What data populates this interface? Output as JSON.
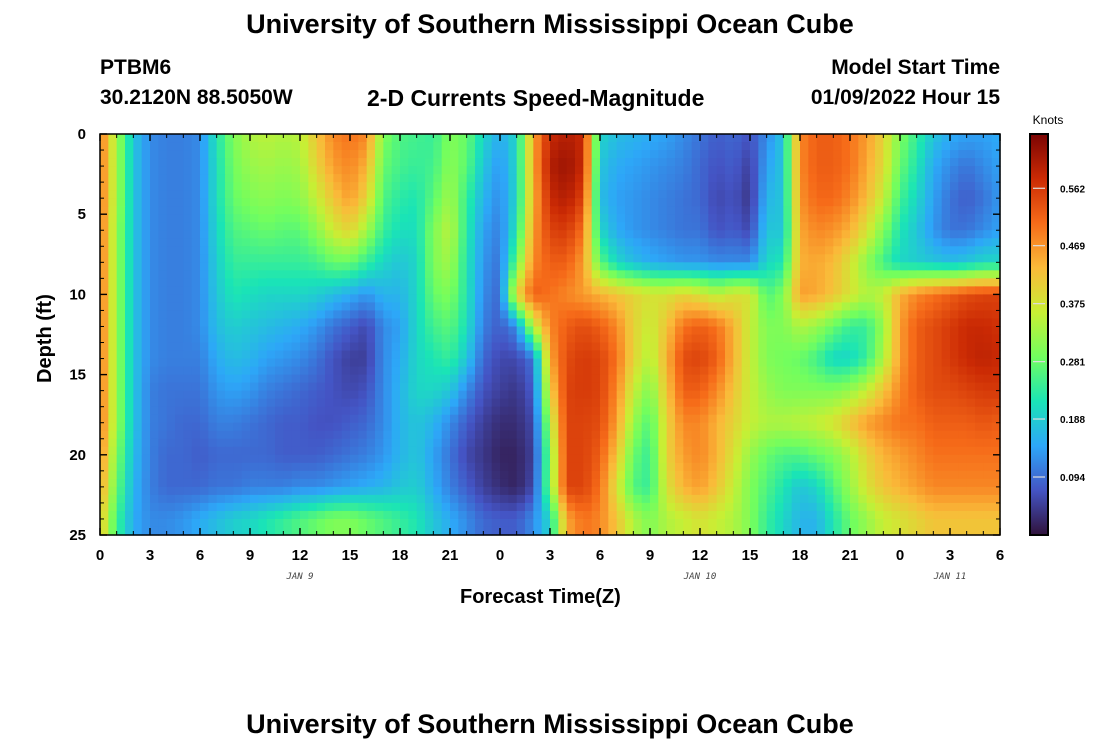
{
  "page": {
    "title_top": "University of Southern Mississippi Ocean Cube",
    "title_bottom": "University of Southern Mississippi Ocean Cube",
    "station": "PTBM6",
    "coords": "30.2120N  88.5050W",
    "subtitle": "2-D Currents Speed-Magnitude",
    "model_label": "Model Start Time",
    "model_time": "01/09/2022 Hour 15"
  },
  "chart_data": {
    "type": "heatmap",
    "title": "2-D Currents Speed-Magnitude",
    "xlabel": "Forecast Time(Z)",
    "ylabel": "Depth (ft)",
    "x_hours": [
      0,
      54
    ],
    "x_tick_labels": [
      "0",
      "3",
      "6",
      "9",
      "12",
      "15",
      "18",
      "21",
      "0",
      "3",
      "6",
      "9",
      "12",
      "15",
      "18",
      "21",
      "0",
      "3",
      "6"
    ],
    "date_labels": [
      {
        "text": "JAN 9",
        "hour": 12
      },
      {
        "text": "JAN 10",
        "hour": 36
      },
      {
        "text": "JAN 11",
        "hour": 51
      }
    ],
    "ylim": [
      0,
      25
    ],
    "y_ticks": [
      0,
      5,
      10,
      15,
      20,
      25
    ],
    "colorbar": {
      "label": "Knots",
      "range": [
        0,
        0.65
      ],
      "ticks": [
        0.094,
        0.188,
        0.281,
        0.375,
        0.469,
        0.562
      ],
      "colors": [
        "#30123b",
        "#4454c4",
        "#2da7f8",
        "#1ae4b6",
        "#72fe5e",
        "#c8ef34",
        "#faba39",
        "#f66b19",
        "#cb2a04",
        "#7a0403"
      ]
    },
    "depths": [
      0,
      2,
      4,
      6,
      8,
      10,
      12,
      14,
      16,
      18,
      20,
      22,
      24
    ],
    "hours": [
      0,
      1,
      2,
      3,
      4,
      5,
      6,
      7,
      8,
      9,
      10,
      11,
      12,
      13,
      14,
      15,
      16,
      17,
      18,
      19,
      20,
      21,
      22,
      23,
      24,
      25,
      26,
      27,
      28,
      29,
      30,
      31,
      32,
      33,
      34,
      35,
      36,
      37,
      38,
      39,
      40,
      41,
      42,
      43,
      44,
      45,
      46,
      47,
      48,
      49,
      50,
      51,
      52,
      53,
      54
    ],
    "values": [
      [
        0.5,
        0.33,
        0.18,
        0.12,
        0.11,
        0.11,
        0.12,
        0.22,
        0.3,
        0.34,
        0.35,
        0.34,
        0.35,
        0.42,
        0.48,
        0.5,
        0.48,
        0.3,
        0.26,
        0.25,
        0.24,
        0.3,
        0.28,
        0.2,
        0.15,
        0.2,
        0.45,
        0.58,
        0.6,
        0.58,
        0.2,
        0.17,
        0.16,
        0.15,
        0.14,
        0.12,
        0.1,
        0.08,
        0.09,
        0.07,
        0.12,
        0.18,
        0.48,
        0.52,
        0.52,
        0.5,
        0.46,
        0.4,
        0.3,
        0.24,
        0.18,
        0.15,
        0.14,
        0.14,
        0.15
      ],
      [
        0.5,
        0.33,
        0.18,
        0.12,
        0.11,
        0.11,
        0.12,
        0.21,
        0.29,
        0.32,
        0.33,
        0.32,
        0.33,
        0.4,
        0.46,
        0.48,
        0.44,
        0.28,
        0.25,
        0.24,
        0.25,
        0.31,
        0.27,
        0.18,
        0.13,
        0.2,
        0.45,
        0.6,
        0.62,
        0.58,
        0.18,
        0.15,
        0.14,
        0.13,
        0.12,
        0.11,
        0.09,
        0.07,
        0.08,
        0.05,
        0.14,
        0.18,
        0.48,
        0.52,
        0.52,
        0.5,
        0.45,
        0.39,
        0.28,
        0.22,
        0.15,
        0.12,
        0.1,
        0.12,
        0.14
      ],
      [
        0.5,
        0.33,
        0.18,
        0.12,
        0.11,
        0.11,
        0.12,
        0.21,
        0.28,
        0.3,
        0.31,
        0.3,
        0.31,
        0.36,
        0.42,
        0.46,
        0.4,
        0.26,
        0.23,
        0.22,
        0.27,
        0.33,
        0.24,
        0.16,
        0.12,
        0.2,
        0.44,
        0.58,
        0.6,
        0.55,
        0.17,
        0.14,
        0.13,
        0.12,
        0.11,
        0.1,
        0.09,
        0.06,
        0.07,
        0.04,
        0.16,
        0.18,
        0.47,
        0.51,
        0.51,
        0.48,
        0.43,
        0.36,
        0.25,
        0.2,
        0.14,
        0.1,
        0.08,
        0.1,
        0.13
      ],
      [
        0.5,
        0.32,
        0.18,
        0.12,
        0.11,
        0.11,
        0.12,
        0.2,
        0.26,
        0.27,
        0.28,
        0.27,
        0.27,
        0.31,
        0.37,
        0.4,
        0.33,
        0.24,
        0.21,
        0.21,
        0.3,
        0.35,
        0.23,
        0.14,
        0.11,
        0.22,
        0.46,
        0.55,
        0.56,
        0.5,
        0.2,
        0.15,
        0.13,
        0.12,
        0.11,
        0.1,
        0.1,
        0.07,
        0.08,
        0.06,
        0.18,
        0.18,
        0.45,
        0.48,
        0.47,
        0.44,
        0.38,
        0.3,
        0.22,
        0.18,
        0.13,
        0.1,
        0.1,
        0.12,
        0.14
      ],
      [
        0.5,
        0.32,
        0.18,
        0.12,
        0.11,
        0.11,
        0.12,
        0.19,
        0.24,
        0.24,
        0.24,
        0.24,
        0.24,
        0.25,
        0.28,
        0.28,
        0.24,
        0.2,
        0.18,
        0.2,
        0.3,
        0.33,
        0.22,
        0.13,
        0.1,
        0.28,
        0.48,
        0.52,
        0.52,
        0.46,
        0.27,
        0.2,
        0.17,
        0.15,
        0.14,
        0.13,
        0.13,
        0.12,
        0.12,
        0.12,
        0.2,
        0.22,
        0.44,
        0.45,
        0.43,
        0.38,
        0.31,
        0.25,
        0.2,
        0.19,
        0.18,
        0.17,
        0.18,
        0.2,
        0.2
      ],
      [
        0.5,
        0.32,
        0.18,
        0.12,
        0.11,
        0.11,
        0.12,
        0.18,
        0.22,
        0.21,
        0.2,
        0.2,
        0.2,
        0.19,
        0.17,
        0.15,
        0.13,
        0.16,
        0.16,
        0.2,
        0.28,
        0.3,
        0.22,
        0.12,
        0.09,
        0.4,
        0.52,
        0.5,
        0.48,
        0.46,
        0.44,
        0.42,
        0.4,
        0.38,
        0.38,
        0.4,
        0.38,
        0.35,
        0.38,
        0.38,
        0.26,
        0.3,
        0.46,
        0.45,
        0.42,
        0.38,
        0.34,
        0.36,
        0.44,
        0.48,
        0.5,
        0.52,
        0.54,
        0.55,
        0.55
      ],
      [
        0.5,
        0.32,
        0.18,
        0.12,
        0.11,
        0.11,
        0.12,
        0.17,
        0.19,
        0.18,
        0.17,
        0.16,
        0.15,
        0.13,
        0.1,
        0.08,
        0.06,
        0.12,
        0.14,
        0.2,
        0.25,
        0.27,
        0.21,
        0.11,
        0.08,
        0.12,
        0.35,
        0.48,
        0.52,
        0.54,
        0.52,
        0.48,
        0.4,
        0.36,
        0.42,
        0.5,
        0.52,
        0.5,
        0.44,
        0.36,
        0.3,
        0.3,
        0.34,
        0.32,
        0.28,
        0.24,
        0.24,
        0.32,
        0.46,
        0.52,
        0.54,
        0.56,
        0.58,
        0.58,
        0.57
      ],
      [
        0.5,
        0.32,
        0.18,
        0.12,
        0.11,
        0.11,
        0.11,
        0.15,
        0.17,
        0.16,
        0.14,
        0.13,
        0.12,
        0.1,
        0.07,
        0.05,
        0.05,
        0.12,
        0.15,
        0.2,
        0.22,
        0.24,
        0.18,
        0.09,
        0.06,
        0.06,
        0.1,
        0.45,
        0.54,
        0.56,
        0.55,
        0.5,
        0.4,
        0.34,
        0.44,
        0.54,
        0.55,
        0.52,
        0.44,
        0.36,
        0.3,
        0.29,
        0.28,
        0.25,
        0.2,
        0.2,
        0.24,
        0.34,
        0.46,
        0.52,
        0.54,
        0.56,
        0.58,
        0.59,
        0.58
      ],
      [
        0.5,
        0.32,
        0.18,
        0.11,
        0.1,
        0.1,
        0.1,
        0.13,
        0.14,
        0.13,
        0.11,
        0.1,
        0.09,
        0.08,
        0.07,
        0.06,
        0.07,
        0.12,
        0.16,
        0.2,
        0.2,
        0.18,
        0.12,
        0.07,
        0.05,
        0.04,
        0.08,
        0.4,
        0.55,
        0.56,
        0.55,
        0.48,
        0.36,
        0.3,
        0.42,
        0.52,
        0.52,
        0.48,
        0.42,
        0.36,
        0.32,
        0.3,
        0.3,
        0.3,
        0.3,
        0.32,
        0.36,
        0.42,
        0.48,
        0.52,
        0.54,
        0.54,
        0.55,
        0.56,
        0.56
      ],
      [
        0.5,
        0.32,
        0.18,
        0.11,
        0.1,
        0.09,
        0.09,
        0.11,
        0.11,
        0.1,
        0.09,
        0.08,
        0.08,
        0.07,
        0.07,
        0.08,
        0.09,
        0.12,
        0.16,
        0.18,
        0.16,
        0.12,
        0.08,
        0.05,
        0.03,
        0.03,
        0.06,
        0.34,
        0.55,
        0.55,
        0.54,
        0.46,
        0.32,
        0.26,
        0.4,
        0.48,
        0.48,
        0.44,
        0.4,
        0.36,
        0.34,
        0.34,
        0.35,
        0.36,
        0.38,
        0.42,
        0.46,
        0.48,
        0.5,
        0.5,
        0.52,
        0.52,
        0.52,
        0.53,
        0.52
      ],
      [
        0.48,
        0.3,
        0.17,
        0.11,
        0.09,
        0.09,
        0.08,
        0.09,
        0.09,
        0.09,
        0.09,
        0.08,
        0.08,
        0.08,
        0.09,
        0.1,
        0.11,
        0.13,
        0.16,
        0.18,
        0.14,
        0.1,
        0.06,
        0.04,
        0.02,
        0.02,
        0.05,
        0.3,
        0.55,
        0.55,
        0.52,
        0.42,
        0.28,
        0.24,
        0.4,
        0.46,
        0.48,
        0.44,
        0.38,
        0.32,
        0.28,
        0.26,
        0.26,
        0.28,
        0.3,
        0.34,
        0.4,
        0.44,
        0.46,
        0.48,
        0.5,
        0.5,
        0.5,
        0.5,
        0.5
      ],
      [
        0.46,
        0.28,
        0.16,
        0.11,
        0.09,
        0.09,
        0.09,
        0.1,
        0.1,
        0.11,
        0.11,
        0.11,
        0.12,
        0.12,
        0.13,
        0.14,
        0.15,
        0.16,
        0.18,
        0.19,
        0.15,
        0.11,
        0.08,
        0.05,
        0.03,
        0.02,
        0.06,
        0.3,
        0.55,
        0.55,
        0.5,
        0.38,
        0.26,
        0.24,
        0.38,
        0.44,
        0.46,
        0.42,
        0.36,
        0.3,
        0.26,
        0.22,
        0.18,
        0.2,
        0.26,
        0.32,
        0.38,
        0.42,
        0.44,
        0.46,
        0.48,
        0.48,
        0.48,
        0.48,
        0.48
      ],
      [
        0.42,
        0.25,
        0.15,
        0.12,
        0.12,
        0.13,
        0.15,
        0.17,
        0.19,
        0.2,
        0.22,
        0.24,
        0.26,
        0.28,
        0.3,
        0.3,
        0.28,
        0.26,
        0.24,
        0.22,
        0.18,
        0.15,
        0.12,
        0.09,
        0.08,
        0.08,
        0.12,
        0.2,
        0.45,
        0.5,
        0.48,
        0.42,
        0.34,
        0.3,
        0.34,
        0.36,
        0.38,
        0.36,
        0.34,
        0.3,
        0.24,
        0.2,
        0.16,
        0.16,
        0.22,
        0.28,
        0.32,
        0.36,
        0.38,
        0.4,
        0.42,
        0.42,
        0.42,
        0.42,
        0.42
      ]
    ]
  }
}
